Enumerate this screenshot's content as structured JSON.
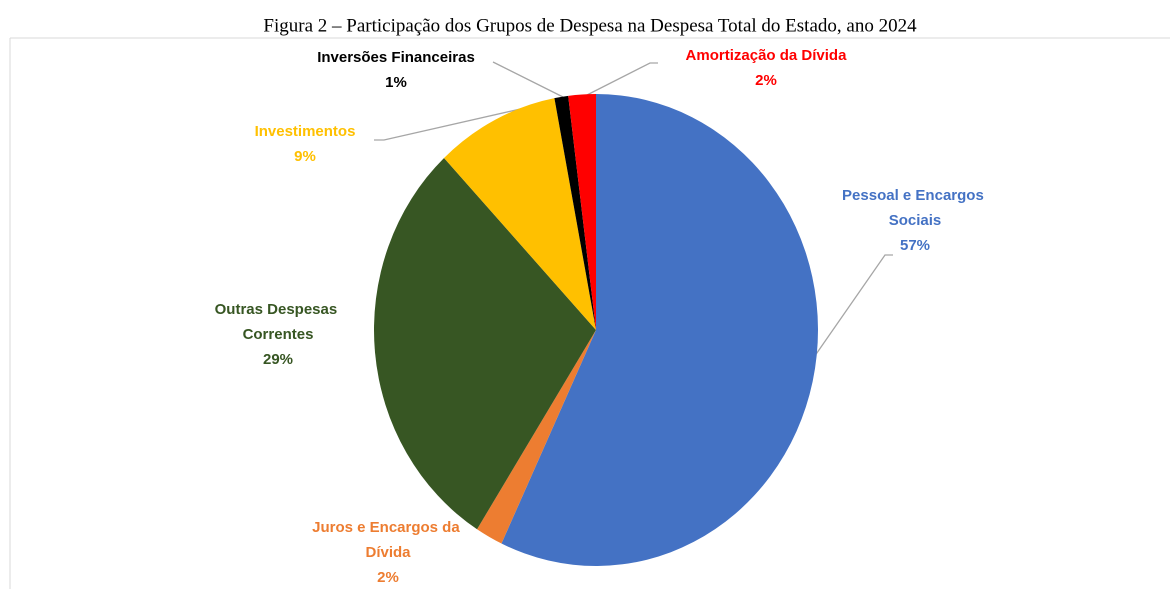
{
  "chart_data": {
    "type": "pie",
    "title": "Figura 2 – Participação dos Grupos de Despesa na Despesa Total do Estado, ano 2024",
    "categories": [
      "Pessoal e Encargos Sociais",
      "Juros e Encargos da Dívida",
      "Outras Despesas Correntes",
      "Investimentos",
      "Inversões Financeiras",
      "Amortização da Dívida"
    ],
    "values": [
      57,
      2,
      29,
      9,
      1,
      2
    ],
    "value_labels": [
      "57%",
      "2%",
      "29%",
      "9%",
      "1%",
      "2%"
    ],
    "colors": [
      "#4472c4",
      "#ed7d31",
      "#375623",
      "#ffc000",
      "#000000",
      "#ff0000"
    ]
  }
}
